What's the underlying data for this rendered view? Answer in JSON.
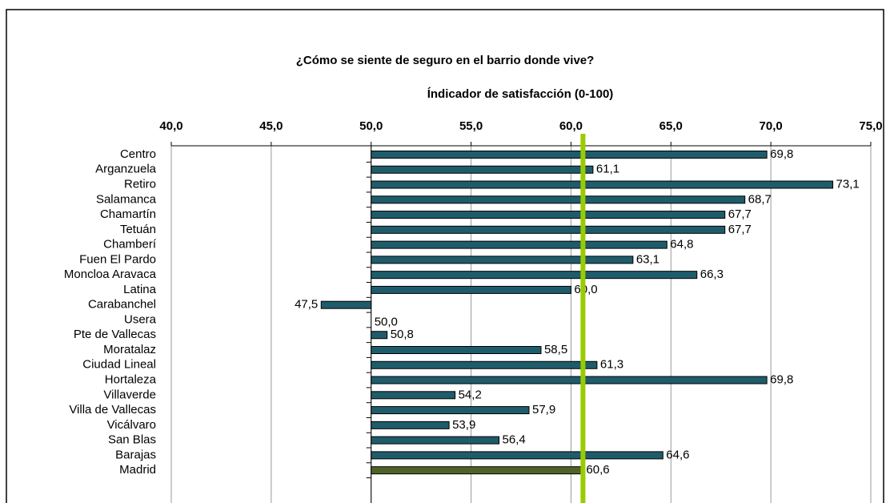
{
  "chart_data": {
    "type": "bar",
    "orientation": "horizontal",
    "title": "¿Cómo se siente de seguro en el barrio donde vive?",
    "x_axis_title": "Índicador de satisfacción (0-100)",
    "categories": [
      "Centro",
      "Arganzuela",
      "Retiro",
      "Salamanca",
      "Chamartín",
      "Tetuán",
      "Chamberí",
      "Fuen El Pardo",
      "Moncloa Aravaca",
      "Latina",
      "Carabanchel",
      "Usera",
      "Pte de Vallecas",
      "Moratalaz",
      "Ciudad Lineal",
      "Hortaleza",
      "Villaverde",
      "Villa de Vallecas",
      "Vicálvaro",
      "San Blas",
      "Barajas",
      "Madrid"
    ],
    "values": [
      69.8,
      61.1,
      73.1,
      68.7,
      67.7,
      67.7,
      64.8,
      63.1,
      66.3,
      60.0,
      47.5,
      50.0,
      50.8,
      58.5,
      61.3,
      69.8,
      54.2,
      57.9,
      53.9,
      56.4,
      64.6,
      60.6
    ],
    "value_labels": [
      "69,8",
      "61,1",
      "73,1",
      "68,7",
      "67,7",
      "67,7",
      "64,8",
      "63,1",
      "66,3",
      "60,0",
      "47,5",
      "50,0",
      "50,8",
      "58,5",
      "61,3",
      "69,8",
      "54,2",
      "57,9",
      "53,9",
      "56,4",
      "64,6",
      "60,6"
    ],
    "colors": [
      "#1f5c6b",
      "#1f5c6b",
      "#1f5c6b",
      "#1f5c6b",
      "#1f5c6b",
      "#1f5c6b",
      "#1f5c6b",
      "#1f5c6b",
      "#1f5c6b",
      "#1f5c6b",
      "#1f5c6b",
      "#1f5c6b",
      "#1f5c6b",
      "#1f5c6b",
      "#1f5c6b",
      "#1f5c6b",
      "#1f5c6b",
      "#1f5c6b",
      "#1f5c6b",
      "#1f5c6b",
      "#1f5c6b",
      "#4f6228"
    ],
    "reference_line_color": "#99cc00",
    "baseline": 50,
    "xlim": [
      40,
      75
    ],
    "xticks": [
      {
        "value": 40,
        "label": "40,0"
      },
      {
        "value": 45,
        "label": "45,0"
      },
      {
        "value": 50,
        "label": "50,0"
      },
      {
        "value": 55,
        "label": "55,0"
      },
      {
        "value": 60,
        "label": "60,0"
      },
      {
        "value": 65,
        "label": "65,0"
      },
      {
        "value": 70,
        "label": "70,0"
      },
      {
        "value": 75,
        "label": "75,0"
      }
    ],
    "grid": true
  }
}
